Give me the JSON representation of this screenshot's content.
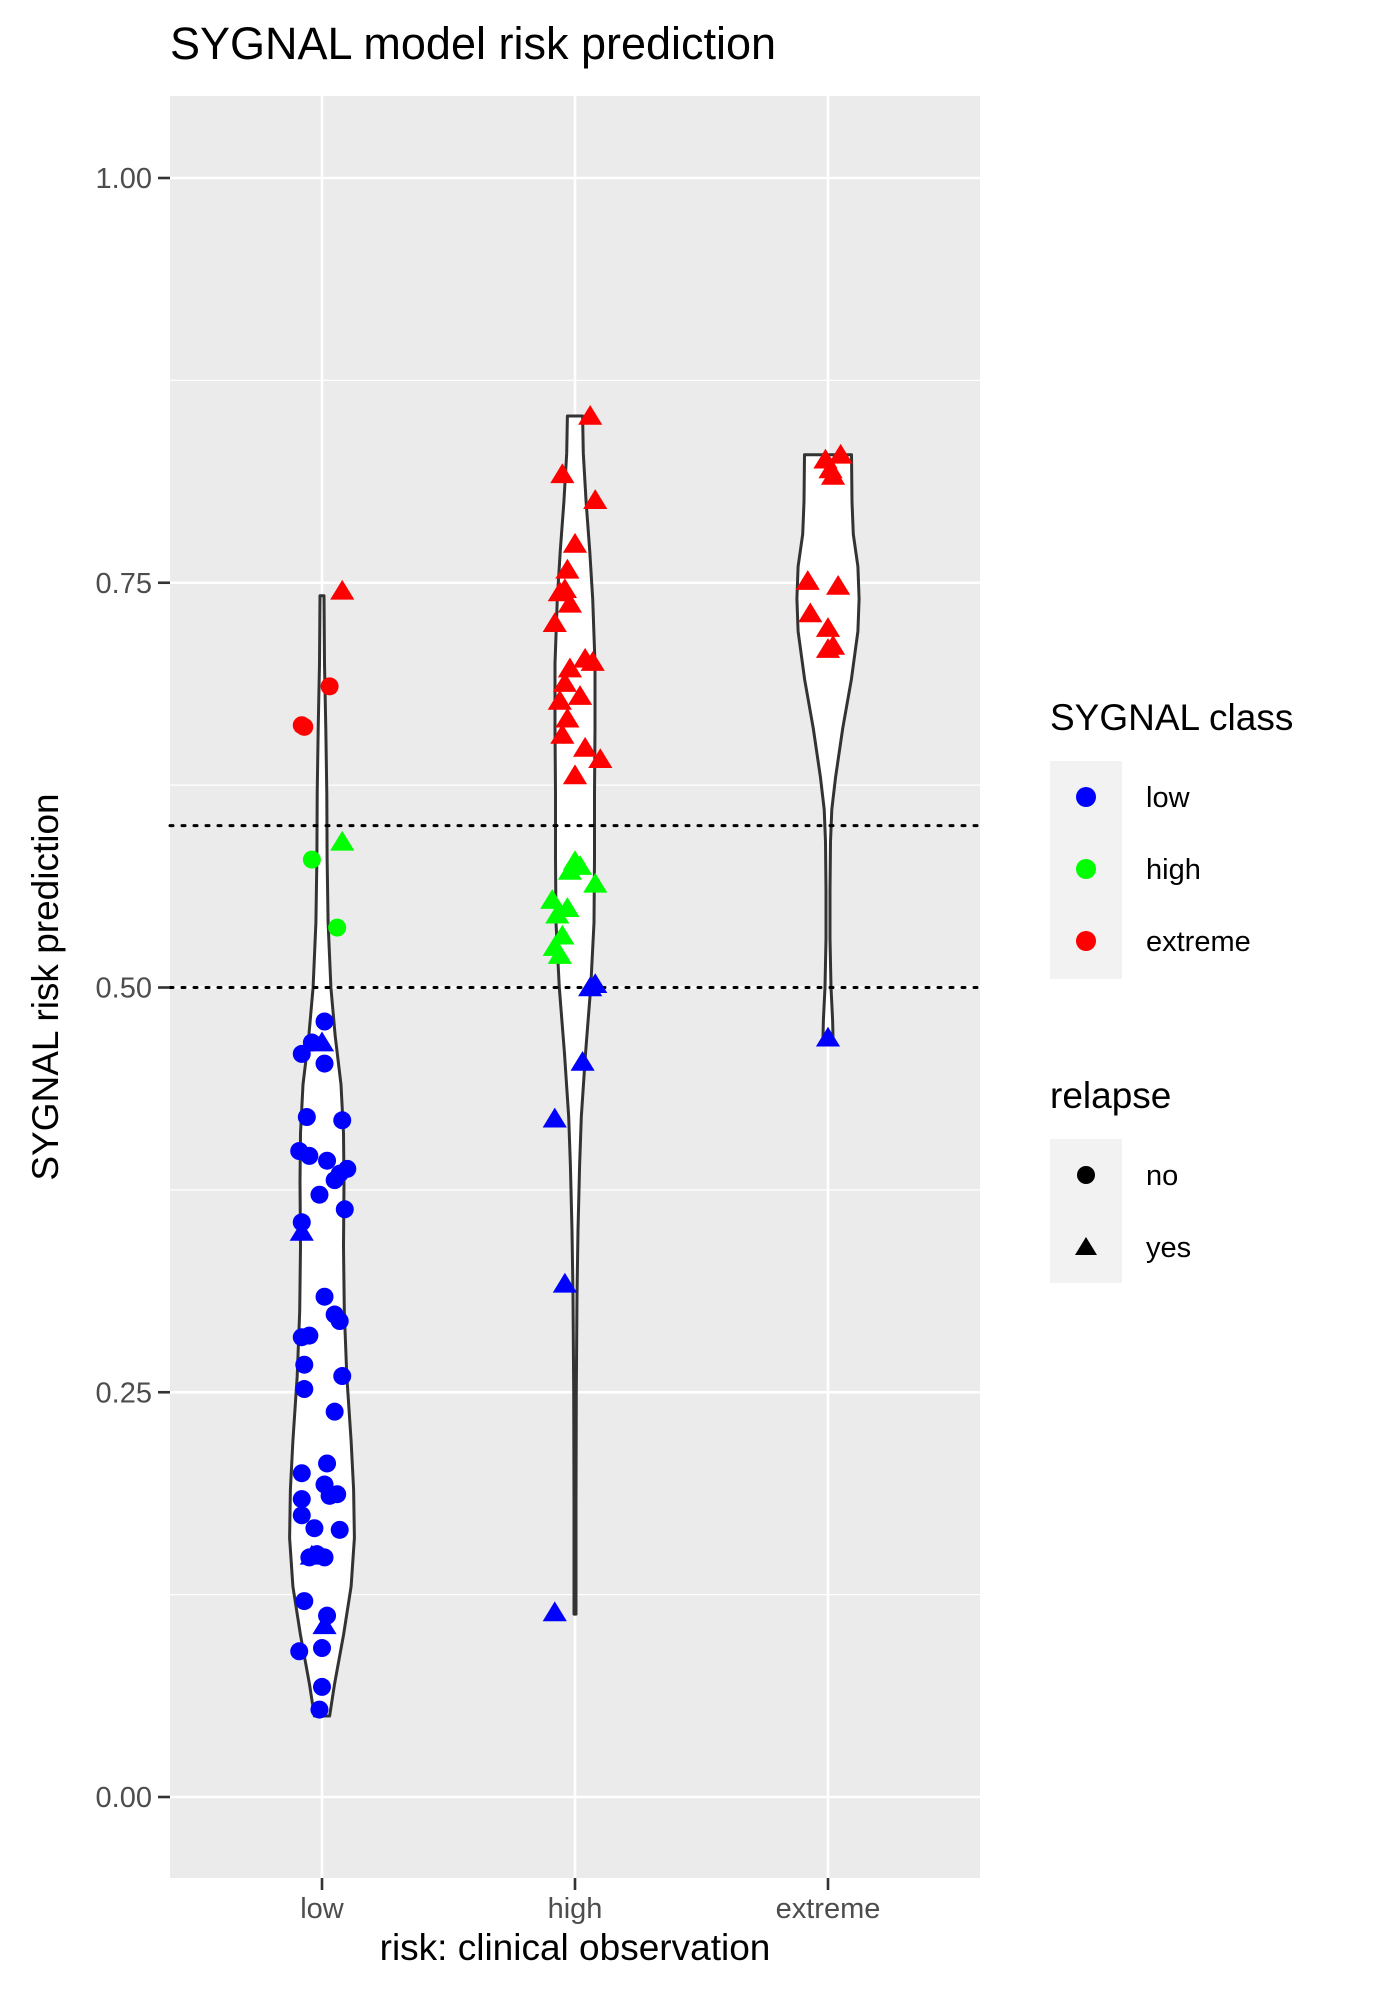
{
  "chart_data": {
    "type": "scatter",
    "subtype": "violin-with-jitter",
    "title": "SYGNAL model risk prediction",
    "xlabel": "risk: clinical observation",
    "ylabel": "SYGNAL risk prediction",
    "categories": [
      "low",
      "high",
      "extreme"
    ],
    "ylim": [
      -0.05,
      1.05
    ],
    "yticks": [
      0.0,
      0.25,
      0.5,
      0.75,
      1.0
    ],
    "ytick_labels": [
      "0.00",
      "0.25",
      "0.50",
      "0.75",
      "1.00"
    ],
    "grid": true,
    "reference_lines": [
      0.5,
      0.6
    ],
    "colors": {
      "low": "#0000ff",
      "high": "#00ff00",
      "extreme": "#ff0000",
      "panel": "#ebebeb",
      "violin_stroke": "#333333"
    },
    "legend": {
      "position": "right",
      "color_title": "SYGNAL class",
      "color_items": [
        {
          "label": "low",
          "color": "#0000ff"
        },
        {
          "label": "high",
          "color": "#00ff00"
        },
        {
          "label": "extreme",
          "color": "#ff0000"
        }
      ],
      "shape_title": "relapse",
      "shape_items": [
        {
          "label": "no",
          "shape": "circle"
        },
        {
          "label": "yes",
          "shape": "triangle"
        }
      ]
    },
    "violins": [
      {
        "category": "low",
        "ymin": 0.05,
        "ymax": 0.742,
        "profile": [
          [
            0.05,
            0.03
          ],
          [
            0.07,
            0.05
          ],
          [
            0.1,
            0.085
          ],
          [
            0.13,
            0.115
          ],
          [
            0.16,
            0.128
          ],
          [
            0.19,
            0.125
          ],
          [
            0.22,
            0.115
          ],
          [
            0.26,
            0.098
          ],
          [
            0.3,
            0.088
          ],
          [
            0.34,
            0.085
          ],
          [
            0.38,
            0.087
          ],
          [
            0.41,
            0.085
          ],
          [
            0.44,
            0.075
          ],
          [
            0.47,
            0.052
          ],
          [
            0.5,
            0.035
          ],
          [
            0.54,
            0.024
          ],
          [
            0.58,
            0.02
          ],
          [
            0.62,
            0.019
          ],
          [
            0.66,
            0.015
          ],
          [
            0.7,
            0.01
          ],
          [
            0.742,
            0.008
          ]
        ]
      },
      {
        "category": "high",
        "ymin": 0.113,
        "ymax": 0.853,
        "profile": [
          [
            0.113,
            0.004
          ],
          [
            0.18,
            0.004
          ],
          [
            0.25,
            0.005
          ],
          [
            0.31,
            0.008
          ],
          [
            0.35,
            0.012
          ],
          [
            0.39,
            0.018
          ],
          [
            0.42,
            0.025
          ],
          [
            0.46,
            0.042
          ],
          [
            0.5,
            0.062
          ],
          [
            0.54,
            0.075
          ],
          [
            0.58,
            0.077
          ],
          [
            0.62,
            0.077
          ],
          [
            0.66,
            0.079
          ],
          [
            0.7,
            0.079
          ],
          [
            0.74,
            0.07
          ],
          [
            0.77,
            0.058
          ],
          [
            0.8,
            0.044
          ],
          [
            0.83,
            0.033
          ],
          [
            0.853,
            0.03
          ]
        ]
      },
      {
        "category": "extreme",
        "ymin": 0.467,
        "ymax": 0.829,
        "profile": [
          [
            0.467,
            0.02
          ],
          [
            0.48,
            0.018
          ],
          [
            0.5,
            0.012
          ],
          [
            0.53,
            0.008
          ],
          [
            0.56,
            0.008
          ],
          [
            0.59,
            0.01
          ],
          [
            0.61,
            0.015
          ],
          [
            0.63,
            0.03
          ],
          [
            0.66,
            0.058
          ],
          [
            0.69,
            0.092
          ],
          [
            0.72,
            0.118
          ],
          [
            0.74,
            0.123
          ],
          [
            0.76,
            0.118
          ],
          [
            0.78,
            0.1
          ],
          [
            0.8,
            0.095
          ],
          [
            0.829,
            0.093
          ]
        ]
      }
    ],
    "points": [
      {
        "x": "low",
        "y": 0.054,
        "cls": "low",
        "relapse": "no",
        "jitter": -0.01
      },
      {
        "x": "low",
        "y": 0.068,
        "cls": "low",
        "relapse": "no",
        "jitter": 0.0
      },
      {
        "x": "low",
        "y": 0.09,
        "cls": "low",
        "relapse": "no",
        "jitter": -0.09
      },
      {
        "x": "low",
        "y": 0.092,
        "cls": "low",
        "relapse": "no",
        "jitter": 0.0
      },
      {
        "x": "low",
        "y": 0.106,
        "cls": "low",
        "relapse": "yes",
        "jitter": 0.01
      },
      {
        "x": "low",
        "y": 0.112,
        "cls": "low",
        "relapse": "no",
        "jitter": 0.02
      },
      {
        "x": "low",
        "y": 0.121,
        "cls": "low",
        "relapse": "no",
        "jitter": -0.07
      },
      {
        "x": "low",
        "y": 0.148,
        "cls": "low",
        "relapse": "no",
        "jitter": -0.05
      },
      {
        "x": "low",
        "y": 0.149,
        "cls": "low",
        "relapse": "yes",
        "jitter": -0.04
      },
      {
        "x": "low",
        "y": 0.148,
        "cls": "low",
        "relapse": "no",
        "jitter": 0.01
      },
      {
        "x": "low",
        "y": 0.15,
        "cls": "low",
        "relapse": "no",
        "jitter": -0.02
      },
      {
        "x": "low",
        "y": 0.165,
        "cls": "low",
        "relapse": "no",
        "jitter": 0.07
      },
      {
        "x": "low",
        "y": 0.166,
        "cls": "low",
        "relapse": "no",
        "jitter": -0.03
      },
      {
        "x": "low",
        "y": 0.174,
        "cls": "low",
        "relapse": "no",
        "jitter": -0.08
      },
      {
        "x": "low",
        "y": 0.184,
        "cls": "low",
        "relapse": "no",
        "jitter": -0.08
      },
      {
        "x": "low",
        "y": 0.186,
        "cls": "low",
        "relapse": "no",
        "jitter": 0.03
      },
      {
        "x": "low",
        "y": 0.187,
        "cls": "low",
        "relapse": "no",
        "jitter": 0.06
      },
      {
        "x": "low",
        "y": 0.193,
        "cls": "low",
        "relapse": "no",
        "jitter": 0.01
      },
      {
        "x": "low",
        "y": 0.2,
        "cls": "low",
        "relapse": "no",
        "jitter": -0.08
      },
      {
        "x": "low",
        "y": 0.206,
        "cls": "low",
        "relapse": "no",
        "jitter": 0.02
      },
      {
        "x": "low",
        "y": 0.238,
        "cls": "low",
        "relapse": "no",
        "jitter": 0.05
      },
      {
        "x": "low",
        "y": 0.252,
        "cls": "low",
        "relapse": "no",
        "jitter": -0.07
      },
      {
        "x": "low",
        "y": 0.26,
        "cls": "low",
        "relapse": "no",
        "jitter": 0.08
      },
      {
        "x": "low",
        "y": 0.267,
        "cls": "low",
        "relapse": "no",
        "jitter": -0.07
      },
      {
        "x": "low",
        "y": 0.284,
        "cls": "low",
        "relapse": "no",
        "jitter": -0.08
      },
      {
        "x": "low",
        "y": 0.285,
        "cls": "low",
        "relapse": "no",
        "jitter": -0.05
      },
      {
        "x": "low",
        "y": 0.294,
        "cls": "low",
        "relapse": "no",
        "jitter": 0.07
      },
      {
        "x": "low",
        "y": 0.298,
        "cls": "low",
        "relapse": "no",
        "jitter": 0.05
      },
      {
        "x": "low",
        "y": 0.309,
        "cls": "low",
        "relapse": "no",
        "jitter": 0.01
      },
      {
        "x": "low",
        "y": 0.349,
        "cls": "low",
        "relapse": "yes",
        "jitter": -0.08
      },
      {
        "x": "low",
        "y": 0.355,
        "cls": "low",
        "relapse": "no",
        "jitter": -0.08
      },
      {
        "x": "low",
        "y": 0.363,
        "cls": "low",
        "relapse": "no",
        "jitter": 0.09
      },
      {
        "x": "low",
        "y": 0.372,
        "cls": "low",
        "relapse": "no",
        "jitter": -0.01
      },
      {
        "x": "low",
        "y": 0.381,
        "cls": "low",
        "relapse": "no",
        "jitter": 0.05
      },
      {
        "x": "low",
        "y": 0.385,
        "cls": "low",
        "relapse": "no",
        "jitter": 0.07
      },
      {
        "x": "low",
        "y": 0.388,
        "cls": "low",
        "relapse": "no",
        "jitter": 0.1
      },
      {
        "x": "low",
        "y": 0.393,
        "cls": "low",
        "relapse": "no",
        "jitter": 0.02
      },
      {
        "x": "low",
        "y": 0.396,
        "cls": "low",
        "relapse": "no",
        "jitter": -0.05
      },
      {
        "x": "low",
        "y": 0.399,
        "cls": "low",
        "relapse": "no",
        "jitter": -0.09
      },
      {
        "x": "low",
        "y": 0.418,
        "cls": "low",
        "relapse": "no",
        "jitter": 0.08
      },
      {
        "x": "low",
        "y": 0.42,
        "cls": "low",
        "relapse": "no",
        "jitter": -0.06
      },
      {
        "x": "low",
        "y": 0.453,
        "cls": "low",
        "relapse": "no",
        "jitter": 0.01
      },
      {
        "x": "low",
        "y": 0.459,
        "cls": "low",
        "relapse": "no",
        "jitter": -0.08
      },
      {
        "x": "low",
        "y": 0.466,
        "cls": "low",
        "relapse": "no",
        "jitter": -0.04
      },
      {
        "x": "low",
        "y": 0.466,
        "cls": "low",
        "relapse": "yes",
        "jitter": 0.0
      },
      {
        "x": "low",
        "y": 0.479,
        "cls": "low",
        "relapse": "no",
        "jitter": 0.01
      },
      {
        "x": "low",
        "y": 0.537,
        "cls": "high",
        "relapse": "no",
        "jitter": 0.06
      },
      {
        "x": "low",
        "y": 0.579,
        "cls": "high",
        "relapse": "no",
        "jitter": -0.04
      },
      {
        "x": "low",
        "y": 0.59,
        "cls": "high",
        "relapse": "yes",
        "jitter": 0.08
      },
      {
        "x": "low",
        "y": 0.662,
        "cls": "extreme",
        "relapse": "no",
        "jitter": -0.08
      },
      {
        "x": "low",
        "y": 0.661,
        "cls": "extreme",
        "relapse": "no",
        "jitter": -0.07
      },
      {
        "x": "low",
        "y": 0.686,
        "cls": "extreme",
        "relapse": "no",
        "jitter": 0.03
      },
      {
        "x": "low",
        "y": 0.745,
        "cls": "extreme",
        "relapse": "yes",
        "jitter": 0.08
      },
      {
        "x": "high",
        "y": 0.114,
        "cls": "low",
        "relapse": "yes",
        "jitter": -0.08
      },
      {
        "x": "high",
        "y": 0.317,
        "cls": "low",
        "relapse": "yes",
        "jitter": -0.04
      },
      {
        "x": "high",
        "y": 0.419,
        "cls": "low",
        "relapse": "yes",
        "jitter": -0.08
      },
      {
        "x": "high",
        "y": 0.454,
        "cls": "low",
        "relapse": "yes",
        "jitter": 0.03
      },
      {
        "x": "high",
        "y": 0.5,
        "cls": "low",
        "relapse": "yes",
        "jitter": 0.06
      },
      {
        "x": "high",
        "y": 0.502,
        "cls": "low",
        "relapse": "yes",
        "jitter": 0.08
      },
      {
        "x": "high",
        "y": 0.52,
        "cls": "high",
        "relapse": "yes",
        "jitter": -0.06
      },
      {
        "x": "high",
        "y": 0.525,
        "cls": "high",
        "relapse": "yes",
        "jitter": -0.08
      },
      {
        "x": "high",
        "y": 0.532,
        "cls": "high",
        "relapse": "yes",
        "jitter": -0.05
      },
      {
        "x": "high",
        "y": 0.545,
        "cls": "high",
        "relapse": "yes",
        "jitter": -0.07
      },
      {
        "x": "high",
        "y": 0.549,
        "cls": "high",
        "relapse": "yes",
        "jitter": -0.03
      },
      {
        "x": "high",
        "y": 0.554,
        "cls": "high",
        "relapse": "yes",
        "jitter": -0.09
      },
      {
        "x": "high",
        "y": 0.564,
        "cls": "high",
        "relapse": "yes",
        "jitter": 0.08
      },
      {
        "x": "high",
        "y": 0.572,
        "cls": "high",
        "relapse": "yes",
        "jitter": -0.02
      },
      {
        "x": "high",
        "y": 0.575,
        "cls": "high",
        "relapse": "yes",
        "jitter": 0.02
      },
      {
        "x": "high",
        "y": 0.578,
        "cls": "high",
        "relapse": "yes",
        "jitter": 0.0
      },
      {
        "x": "high",
        "y": 0.631,
        "cls": "extreme",
        "relapse": "yes",
        "jitter": 0.0
      },
      {
        "x": "high",
        "y": 0.641,
        "cls": "extreme",
        "relapse": "yes",
        "jitter": 0.1
      },
      {
        "x": "high",
        "y": 0.648,
        "cls": "extreme",
        "relapse": "yes",
        "jitter": 0.04
      },
      {
        "x": "high",
        "y": 0.656,
        "cls": "extreme",
        "relapse": "yes",
        "jitter": -0.05
      },
      {
        "x": "high",
        "y": 0.666,
        "cls": "extreme",
        "relapse": "yes",
        "jitter": -0.03
      },
      {
        "x": "high",
        "y": 0.677,
        "cls": "extreme",
        "relapse": "yes",
        "jitter": -0.06
      },
      {
        "x": "high",
        "y": 0.68,
        "cls": "extreme",
        "relapse": "yes",
        "jitter": 0.02
      },
      {
        "x": "high",
        "y": 0.688,
        "cls": "extreme",
        "relapse": "yes",
        "jitter": -0.04
      },
      {
        "x": "high",
        "y": 0.697,
        "cls": "extreme",
        "relapse": "yes",
        "jitter": -0.02
      },
      {
        "x": "high",
        "y": 0.701,
        "cls": "extreme",
        "relapse": "yes",
        "jitter": 0.07
      },
      {
        "x": "high",
        "y": 0.703,
        "cls": "extreme",
        "relapse": "yes",
        "jitter": 0.04
      },
      {
        "x": "high",
        "y": 0.725,
        "cls": "extreme",
        "relapse": "yes",
        "jitter": -0.08
      },
      {
        "x": "high",
        "y": 0.737,
        "cls": "extreme",
        "relapse": "yes",
        "jitter": -0.02
      },
      {
        "x": "high",
        "y": 0.744,
        "cls": "extreme",
        "relapse": "yes",
        "jitter": -0.06
      },
      {
        "x": "high",
        "y": 0.746,
        "cls": "extreme",
        "relapse": "yes",
        "jitter": -0.04
      },
      {
        "x": "high",
        "y": 0.758,
        "cls": "extreme",
        "relapse": "yes",
        "jitter": -0.03
      },
      {
        "x": "high",
        "y": 0.774,
        "cls": "extreme",
        "relapse": "yes",
        "jitter": 0.0
      },
      {
        "x": "high",
        "y": 0.801,
        "cls": "extreme",
        "relapse": "yes",
        "jitter": 0.08
      },
      {
        "x": "high",
        "y": 0.817,
        "cls": "extreme",
        "relapse": "yes",
        "jitter": -0.05
      },
      {
        "x": "high",
        "y": 0.853,
        "cls": "extreme",
        "relapse": "yes",
        "jitter": 0.06
      },
      {
        "x": "extreme",
        "y": 0.469,
        "cls": "low",
        "relapse": "yes",
        "jitter": 0.0
      },
      {
        "x": "extreme",
        "y": 0.709,
        "cls": "extreme",
        "relapse": "yes",
        "jitter": 0.0
      },
      {
        "x": "extreme",
        "y": 0.711,
        "cls": "extreme",
        "relapse": "yes",
        "jitter": 0.02
      },
      {
        "x": "extreme",
        "y": 0.722,
        "cls": "extreme",
        "relapse": "yes",
        "jitter": 0.0
      },
      {
        "x": "extreme",
        "y": 0.731,
        "cls": "extreme",
        "relapse": "yes",
        "jitter": -0.07
      },
      {
        "x": "extreme",
        "y": 0.748,
        "cls": "extreme",
        "relapse": "yes",
        "jitter": 0.04
      },
      {
        "x": "extreme",
        "y": 0.751,
        "cls": "extreme",
        "relapse": "yes",
        "jitter": -0.08
      },
      {
        "x": "extreme",
        "y": 0.816,
        "cls": "extreme",
        "relapse": "yes",
        "jitter": 0.02
      },
      {
        "x": "extreme",
        "y": 0.82,
        "cls": "extreme",
        "relapse": "yes",
        "jitter": 0.01
      },
      {
        "x": "extreme",
        "y": 0.826,
        "cls": "extreme",
        "relapse": "yes",
        "jitter": -0.01
      },
      {
        "x": "extreme",
        "y": 0.829,
        "cls": "extreme",
        "relapse": "yes",
        "jitter": 0.05
      }
    ]
  }
}
